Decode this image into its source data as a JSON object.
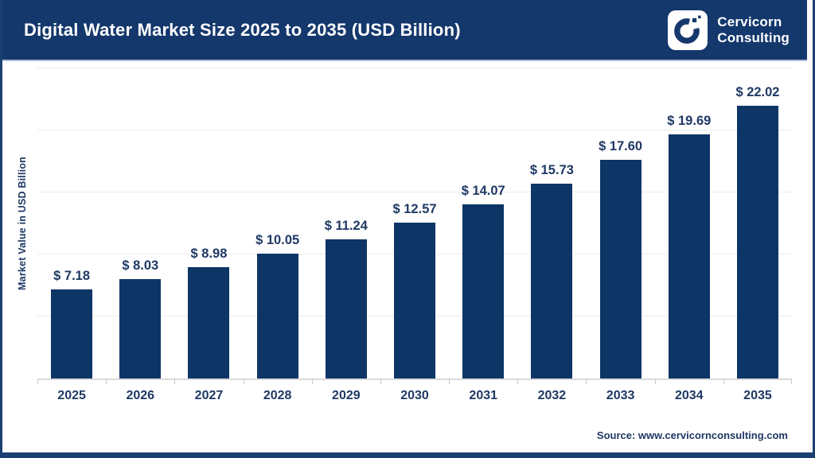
{
  "header": {
    "title": "Digital Water Market Size 2025 to 2035 (USD Billion)",
    "logo": {
      "line1": "Cervicorn",
      "line2": "Consulting"
    }
  },
  "chart_data": {
    "type": "bar",
    "title": "Digital Water Market Size 2025 to 2035 (USD Billion)",
    "categories": [
      "2025",
      "2026",
      "2027",
      "2028",
      "2029",
      "2030",
      "2031",
      "2032",
      "2033",
      "2034",
      "2035"
    ],
    "values": [
      7.18,
      8.03,
      8.98,
      10.05,
      11.24,
      12.57,
      14.07,
      15.73,
      17.6,
      19.69,
      22.02
    ],
    "value_labels": [
      "$ 7.18",
      "$ 8.03",
      "$ 8.98",
      "$ 10.05",
      "$ 11.24",
      "$ 12.57",
      "$ 14.07",
      "$ 15.73",
      "$ 17.60",
      "$ 19.69",
      "$ 22.02"
    ],
    "xlabel": "",
    "ylabel": "Market Value in USD Billion",
    "ylim": [
      0,
      25
    ],
    "gridline_step": 5,
    "grid": "horizontal-only",
    "legend": "none",
    "bar_color": "#0d3566",
    "source": "Source: www.cervicornconsulting.com"
  },
  "colors": {
    "header_bg": "#14386c",
    "accent_navy": "#1f3864",
    "page_border": "#1c3f72",
    "grid": "#ececec",
    "baseline": "#d9d9d9",
    "logo_mark": "#14386c",
    "white": "#ffffff"
  }
}
